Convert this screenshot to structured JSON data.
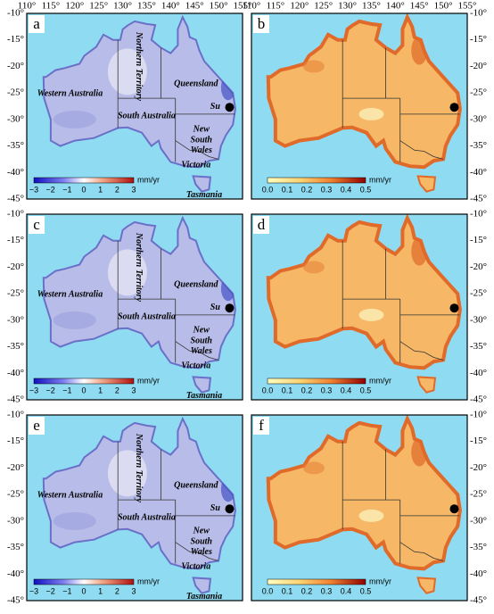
{
  "lon_ticks": [
    "110°",
    "115°",
    "120°",
    "125°",
    "130°",
    "135°",
    "140°",
    "145°",
    "150°",
    "155°"
  ],
  "lat_ticks": [
    "-10°",
    "-15°",
    "-20°",
    "-25°",
    "-30°",
    "-35°",
    "-40°",
    "-45°"
  ],
  "panels": [
    {
      "label": "a",
      "kind": "velocity"
    },
    {
      "label": "b",
      "kind": "uncertainty"
    },
    {
      "label": "c",
      "kind": "velocity"
    },
    {
      "label": "d",
      "kind": "uncertainty"
    },
    {
      "label": "e",
      "kind": "velocity"
    },
    {
      "label": "f",
      "kind": "uncertainty"
    }
  ],
  "regions": {
    "western_australia": "Western Australia",
    "northern_territory": "Northern Territory",
    "queensland": "Queensland",
    "south_australia": "South Australia",
    "nsw": [
      "New",
      "South",
      "Wales"
    ],
    "victoria": "Victoria",
    "tasmania": "Tasmania",
    "su": "Su"
  },
  "colorbars": {
    "velocity": {
      "ticks": [
        "−3",
        "−2",
        "−1",
        "0",
        "1",
        "2",
        "3"
      ],
      "unit": "mm/yr"
    },
    "uncertainty": {
      "ticks": [
        "0.0",
        "0.1",
        "0.2",
        "0.3",
        "0.4",
        "0.5"
      ],
      "unit": "mm/yr"
    }
  }
}
